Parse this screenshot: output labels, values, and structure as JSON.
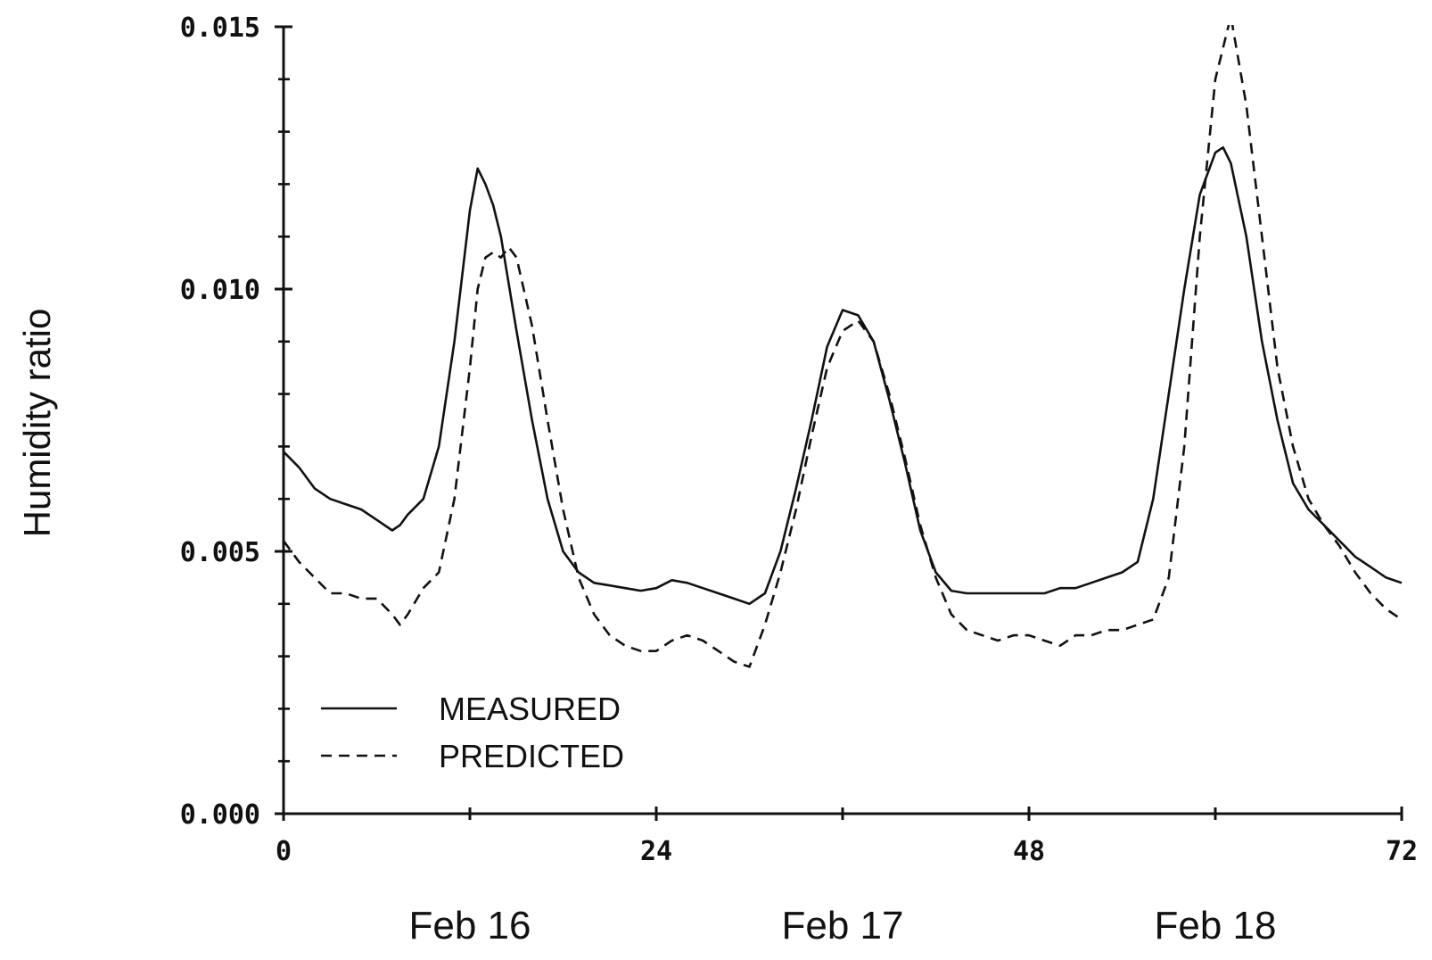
{
  "chart_data": {
    "type": "line",
    "title": "",
    "xlabel": "",
    "ylabel": "Humidity ratio",
    "xlim": [
      0,
      72
    ],
    "ylim": [
      0,
      0.015
    ],
    "x_ticks": [
      0,
      24,
      48,
      72
    ],
    "x_tick_labels": [
      "0",
      "24",
      "48",
      "72"
    ],
    "x_minor_ticks": [
      12,
      36,
      60
    ],
    "y_ticks": [
      0,
      0.005,
      0.01,
      0.015
    ],
    "y_tick_labels": [
      "0.000",
      "0.005",
      "0.010",
      "0.015"
    ],
    "y_minor_step": 0.001,
    "day_labels": [
      {
        "x": 12,
        "label": "Feb 16"
      },
      {
        "x": 36,
        "label": "Feb 17"
      },
      {
        "x": 60,
        "label": "Feb 18"
      }
    ],
    "grid": false,
    "legend": "bottom-left",
    "series": [
      {
        "name": "MEASURED",
        "style": "solid",
        "x": [
          0,
          1,
          2,
          3,
          4,
          5,
          6,
          7,
          7.5,
          8,
          9,
          10,
          11,
          12,
          12.5,
          13,
          13.5,
          14,
          15,
          16,
          17,
          18,
          19,
          20,
          21,
          22,
          23,
          24,
          25,
          26,
          27,
          28,
          29,
          30,
          31,
          32,
          33,
          34,
          35,
          36,
          37,
          38,
          39,
          40,
          41,
          42,
          43,
          44,
          45,
          46,
          47,
          48,
          49,
          50,
          51,
          52,
          53,
          54,
          55,
          56,
          57,
          58,
          59,
          60,
          60.5,
          61,
          62,
          63,
          64,
          65,
          66,
          67,
          68,
          69,
          70,
          71,
          72
        ],
        "y": [
          0.0069,
          0.0066,
          0.0062,
          0.006,
          0.0059,
          0.0058,
          0.0056,
          0.0054,
          0.0055,
          0.0057,
          0.006,
          0.007,
          0.009,
          0.0115,
          0.0123,
          0.012,
          0.0116,
          0.011,
          0.0092,
          0.0075,
          0.006,
          0.005,
          0.0046,
          0.0044,
          0.00435,
          0.0043,
          0.00425,
          0.0043,
          0.00445,
          0.0044,
          0.0043,
          0.0042,
          0.0041,
          0.004,
          0.0042,
          0.005,
          0.0062,
          0.0075,
          0.0089,
          0.0096,
          0.0095,
          0.009,
          0.0079,
          0.0067,
          0.0054,
          0.0046,
          0.00425,
          0.0042,
          0.0042,
          0.0042,
          0.0042,
          0.0042,
          0.0042,
          0.0043,
          0.0043,
          0.0044,
          0.0045,
          0.0046,
          0.0048,
          0.006,
          0.008,
          0.01,
          0.0118,
          0.0126,
          0.0127,
          0.0124,
          0.011,
          0.009,
          0.0075,
          0.0063,
          0.0058,
          0.0055,
          0.0052,
          0.0049,
          0.0047,
          0.0045,
          0.0044
        ]
      },
      {
        "name": "PREDICTED",
        "style": "dashed",
        "x": [
          0,
          1,
          2,
          3,
          4,
          5,
          6,
          7,
          7.5,
          8,
          9,
          10,
          11,
          12,
          12.5,
          13,
          13.5,
          14,
          14.5,
          15,
          16,
          17,
          18,
          19,
          20,
          21,
          22,
          23,
          24,
          25,
          26,
          27,
          28,
          29,
          30,
          31,
          32,
          33,
          34,
          35,
          36,
          37,
          38,
          39,
          40,
          41,
          42,
          43,
          44,
          45,
          46,
          47,
          48,
          49,
          50,
          51,
          52,
          53,
          54,
          55,
          56,
          57,
          58,
          59,
          60,
          61,
          62,
          63,
          64,
          65,
          66,
          67,
          68,
          69,
          70,
          71,
          72
        ],
        "y": [
          0.0052,
          0.0048,
          0.0045,
          0.0042,
          0.0042,
          0.0041,
          0.0041,
          0.0038,
          0.0036,
          0.0038,
          0.0043,
          0.0046,
          0.006,
          0.0085,
          0.01,
          0.0106,
          0.0107,
          0.0106,
          0.0108,
          0.0106,
          0.0093,
          0.0075,
          0.0058,
          0.0045,
          0.0038,
          0.0034,
          0.0032,
          0.0031,
          0.0031,
          0.0033,
          0.0034,
          0.0033,
          0.0031,
          0.0029,
          0.0028,
          0.0036,
          0.0046,
          0.0058,
          0.0072,
          0.0085,
          0.0092,
          0.0094,
          0.009,
          0.008,
          0.0068,
          0.0055,
          0.0045,
          0.0038,
          0.0035,
          0.0034,
          0.0033,
          0.0034,
          0.0034,
          0.0033,
          0.0032,
          0.0034,
          0.0034,
          0.0035,
          0.0035,
          0.0036,
          0.0037,
          0.0045,
          0.007,
          0.011,
          0.014,
          0.0152,
          0.0135,
          0.011,
          0.0085,
          0.007,
          0.006,
          0.0055,
          0.0051,
          0.0046,
          0.0042,
          0.0039,
          0.0037
        ]
      }
    ]
  }
}
